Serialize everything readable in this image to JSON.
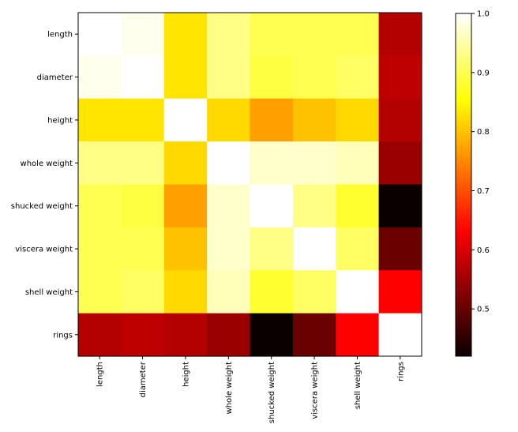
{
  "chart_data": {
    "type": "heatmap",
    "title": "",
    "xlabel": "",
    "ylabel": "",
    "labels": [
      "length",
      "diameter",
      "height",
      "whole weight",
      "shucked weight",
      "viscera weight",
      "shell weight",
      "rings"
    ],
    "values": [
      [
        1.0,
        0.99,
        0.83,
        0.93,
        0.9,
        0.9,
        0.9,
        0.56
      ],
      [
        0.99,
        1.0,
        0.83,
        0.93,
        0.89,
        0.9,
        0.91,
        0.57
      ],
      [
        0.83,
        0.83,
        1.0,
        0.82,
        0.77,
        0.8,
        0.82,
        0.56
      ],
      [
        0.93,
        0.93,
        0.82,
        1.0,
        0.97,
        0.97,
        0.96,
        0.54
      ],
      [
        0.9,
        0.89,
        0.77,
        0.97,
        1.0,
        0.93,
        0.88,
        0.42
      ],
      [
        0.9,
        0.9,
        0.8,
        0.97,
        0.93,
        1.0,
        0.91,
        0.5
      ],
      [
        0.9,
        0.91,
        0.82,
        0.96,
        0.88,
        0.91,
        1.0,
        0.63
      ],
      [
        0.56,
        0.57,
        0.56,
        0.54,
        0.42,
        0.5,
        0.63,
        1.0
      ]
    ],
    "colormap": "hot",
    "vmin": 0.42,
    "vmax": 1.0,
    "colorbar_ticks": [
      "0.5",
      "0.6",
      "0.7",
      "0.8",
      "0.9",
      "1.0"
    ]
  }
}
